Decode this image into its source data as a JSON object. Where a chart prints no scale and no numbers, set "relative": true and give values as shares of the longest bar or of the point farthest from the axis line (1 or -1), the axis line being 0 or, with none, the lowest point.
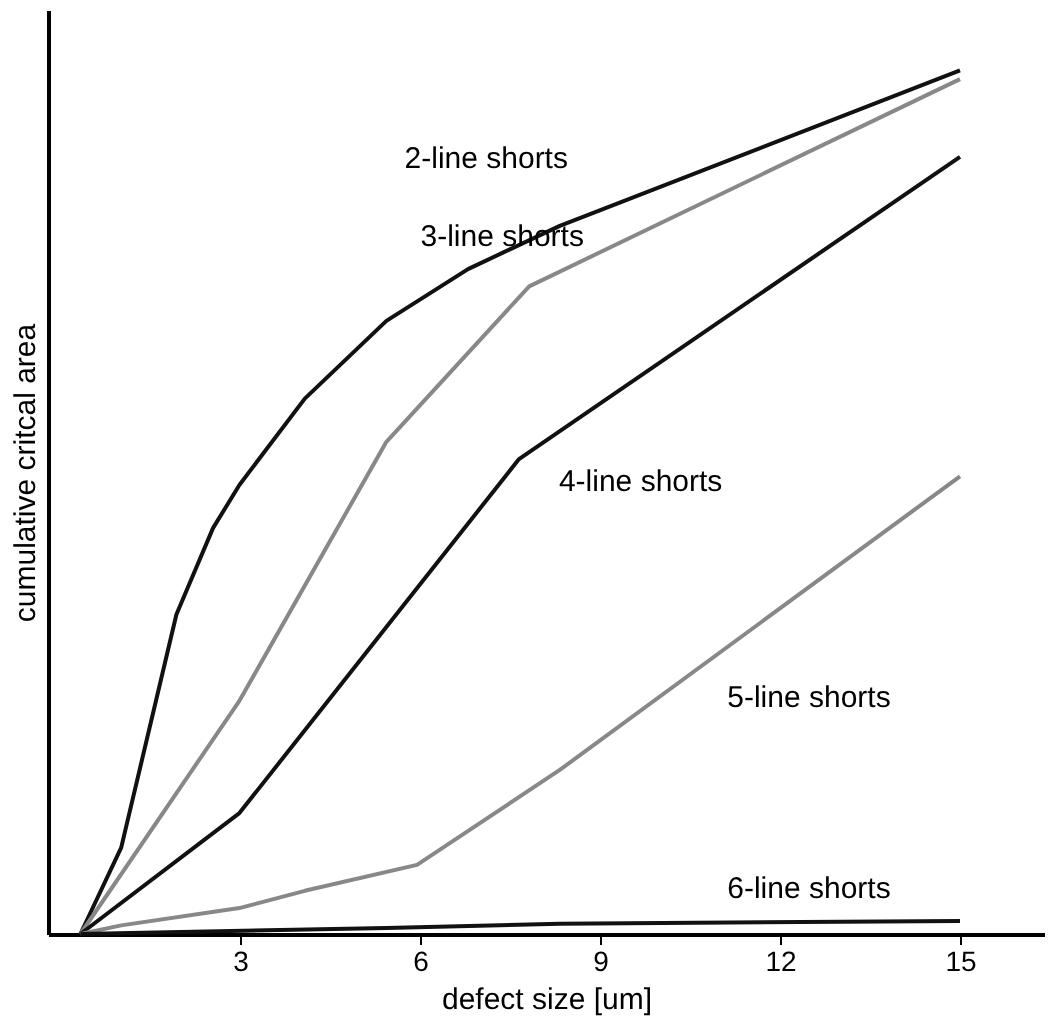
{
  "chart_data": {
    "type": "line",
    "relative": true,
    "xlabel": "defect size [um]",
    "ylabel": "cumulative critcal area",
    "xlim": [
      -0.2,
      16.4
    ],
    "xticks": [
      3,
      6,
      9,
      12,
      15
    ],
    "grid": false,
    "legend": false,
    "marker": "none",
    "line_style": "solid",
    "series": [
      {
        "color": "#111111",
        "x": [
          0.34,
          1.02,
          1.94,
          2.55,
          2.99,
          4.08,
          5.44,
          6.8,
          8.33,
          15
        ],
        "values": [
          0,
          0.1,
          0.37,
          0.47,
          0.52,
          0.62,
          0.71,
          0.77,
          0.82,
          1
        ]
      },
      {
        "color": "#888888",
        "x": [
          0.34,
          2.99,
          5.44,
          7.82,
          15
        ],
        "values": [
          0,
          0.27,
          0.57,
          0.75,
          0.99
        ]
      },
      {
        "color": "#111111",
        "x": [
          0.34,
          2.99,
          7.65,
          15
        ],
        "values": [
          0,
          0.14,
          0.55,
          0.9
        ]
      },
      {
        "color": "#888888",
        "x": [
          0.34,
          1.02,
          2.99,
          4.08,
          5.95,
          8.33,
          15
        ],
        "values": [
          0,
          0.01,
          0.03,
          0.05,
          0.08,
          0.19,
          0.53
        ]
      },
      {
        "color": "#111111",
        "x": [
          0.34,
          5.44,
          8.33,
          15
        ],
        "values": [
          0,
          0.007,
          0.012,
          0.015
        ]
      }
    ],
    "annotations": [
      "2-line shorts",
      "3-line shorts",
      "4-line shorts",
      "5-line shorts",
      "6-line shorts"
    ]
  }
}
